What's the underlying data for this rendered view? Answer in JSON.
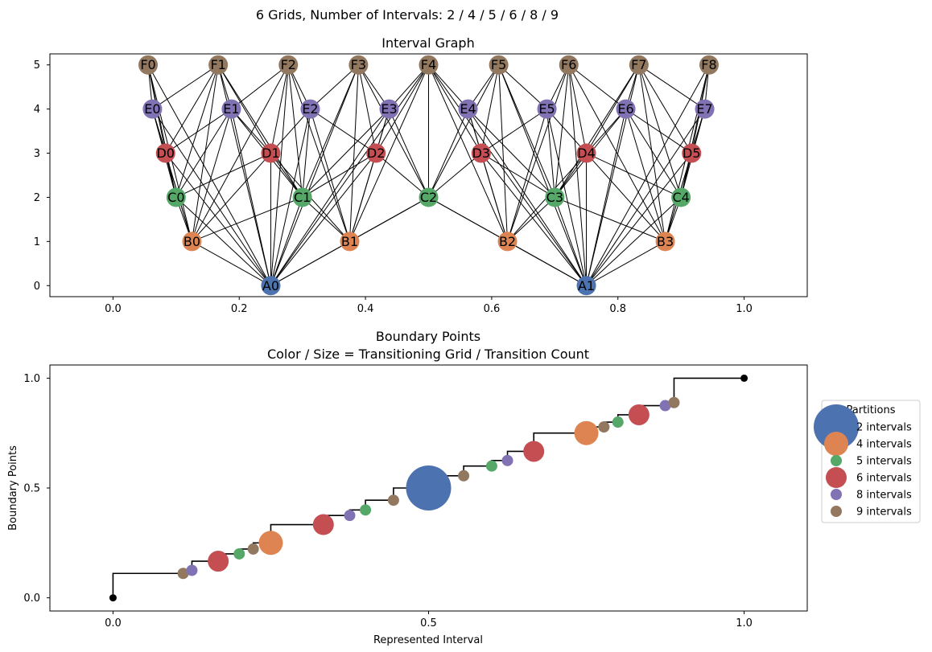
{
  "suptitle": "6 Grids, Number of Intervals: 2 / 4 / 5 / 6 / 8 / 9",
  "colors": {
    "A": "#4c72b0",
    "B": "#dd8452",
    "C": "#55a868",
    "D": "#c44e52",
    "E": "#8172b3",
    "F": "#937860",
    "edge": "#000000",
    "step": "#000000",
    "endpoint": "#000000"
  },
  "chart_data": [
    {
      "type": "network",
      "title": "Interval Graph",
      "xlim": [
        -0.1,
        1.1
      ],
      "ylim": [
        -0.25,
        5.25
      ],
      "xticks": [
        0.0,
        0.2,
        0.4,
        0.6,
        0.8,
        1.0
      ],
      "xtick_labels": [
        "0.0",
        "0.2",
        "0.4",
        "0.6",
        "0.8",
        "1.0"
      ],
      "yticks": [
        0,
        1,
        2,
        3,
        4,
        5
      ],
      "ytick_labels": [
        "0",
        "1",
        "2",
        "3",
        "4",
        "5"
      ],
      "levels": [
        {
          "prefix": "A",
          "y": 0,
          "x": [
            0.25,
            0.75
          ]
        },
        {
          "prefix": "B",
          "y": 1,
          "x": [
            0.125,
            0.375,
            0.625,
            0.875
          ]
        },
        {
          "prefix": "C",
          "y": 2,
          "x": [
            0.1,
            0.3,
            0.5,
            0.7,
            0.9
          ]
        },
        {
          "prefix": "D",
          "y": 3,
          "x": [
            0.0833,
            0.25,
            0.4167,
            0.5833,
            0.75,
            0.9167
          ]
        },
        {
          "prefix": "E",
          "y": 4,
          "x": [
            0.0625,
            0.1875,
            0.3125,
            0.4375,
            0.5625,
            0.6875,
            0.8125,
            0.9375
          ]
        },
        {
          "prefix": "F",
          "y": 5,
          "x": [
            0.0556,
            0.1667,
            0.2778,
            0.3889,
            0.5,
            0.6111,
            0.7222,
            0.8333,
            0.9444
          ]
        }
      ],
      "edge_rule": "nodes joined when their grid intervals overlap"
    },
    {
      "type": "scatter",
      "title": "Boundary Points\nColor / Size = Transitioning Grid / Transition Count",
      "xlabel": "Represented Interval",
      "ylabel": "Boundary Points",
      "xlim": [
        -0.1,
        1.1
      ],
      "ylim": [
        -0.06,
        1.06
      ],
      "xticks": [
        0.0,
        0.5,
        1.0
      ],
      "xtick_labels": [
        "0.0",
        "0.5",
        "1.0"
      ],
      "yticks": [
        0.0,
        0.5,
        1.0
      ],
      "ytick_labels": [
        "0.0",
        "0.5",
        "1.0"
      ],
      "legend": {
        "title": "Partitions",
        "position": "right",
        "entries": [
          {
            "label": "2 intervals",
            "grid": "A"
          },
          {
            "label": "4 intervals",
            "grid": "B"
          },
          {
            "label": "5 intervals",
            "grid": "C"
          },
          {
            "label": "6 intervals",
            "grid": "D"
          },
          {
            "label": "8 intervals",
            "grid": "E"
          },
          {
            "label": "9 intervals",
            "grid": "F"
          }
        ]
      },
      "endpoints": [
        {
          "x": 0.0,
          "y": 0.0
        },
        {
          "x": 1.0,
          "y": 1.0
        }
      ],
      "points": [
        {
          "x": 0.1111,
          "y": 0.1111,
          "grid": "F"
        },
        {
          "x": 0.125,
          "y": 0.125,
          "grid": "E"
        },
        {
          "x": 0.1667,
          "y": 0.1667,
          "grid": "D"
        },
        {
          "x": 0.2,
          "y": 0.2,
          "grid": "C"
        },
        {
          "x": 0.2222,
          "y": 0.2222,
          "grid": "F"
        },
        {
          "x": 0.25,
          "y": 0.25,
          "grid": "B"
        },
        {
          "x": 0.3333,
          "y": 0.3333,
          "grid": "D"
        },
        {
          "x": 0.375,
          "y": 0.375,
          "grid": "E"
        },
        {
          "x": 0.4,
          "y": 0.4,
          "grid": "C"
        },
        {
          "x": 0.4444,
          "y": 0.4444,
          "grid": "F"
        },
        {
          "x": 0.5,
          "y": 0.5,
          "grid": "A"
        },
        {
          "x": 0.5556,
          "y": 0.5556,
          "grid": "F"
        },
        {
          "x": 0.6,
          "y": 0.6,
          "grid": "C"
        },
        {
          "x": 0.625,
          "y": 0.625,
          "grid": "E"
        },
        {
          "x": 0.6667,
          "y": 0.6667,
          "grid": "D"
        },
        {
          "x": 0.75,
          "y": 0.75,
          "grid": "B"
        },
        {
          "x": 0.7778,
          "y": 0.7778,
          "grid": "F"
        },
        {
          "x": 0.8,
          "y": 0.8,
          "grid": "C"
        },
        {
          "x": 0.8333,
          "y": 0.8333,
          "grid": "D"
        },
        {
          "x": 0.875,
          "y": 0.875,
          "grid": "E"
        },
        {
          "x": 0.8889,
          "y": 0.8889,
          "grid": "F"
        }
      ]
    }
  ]
}
